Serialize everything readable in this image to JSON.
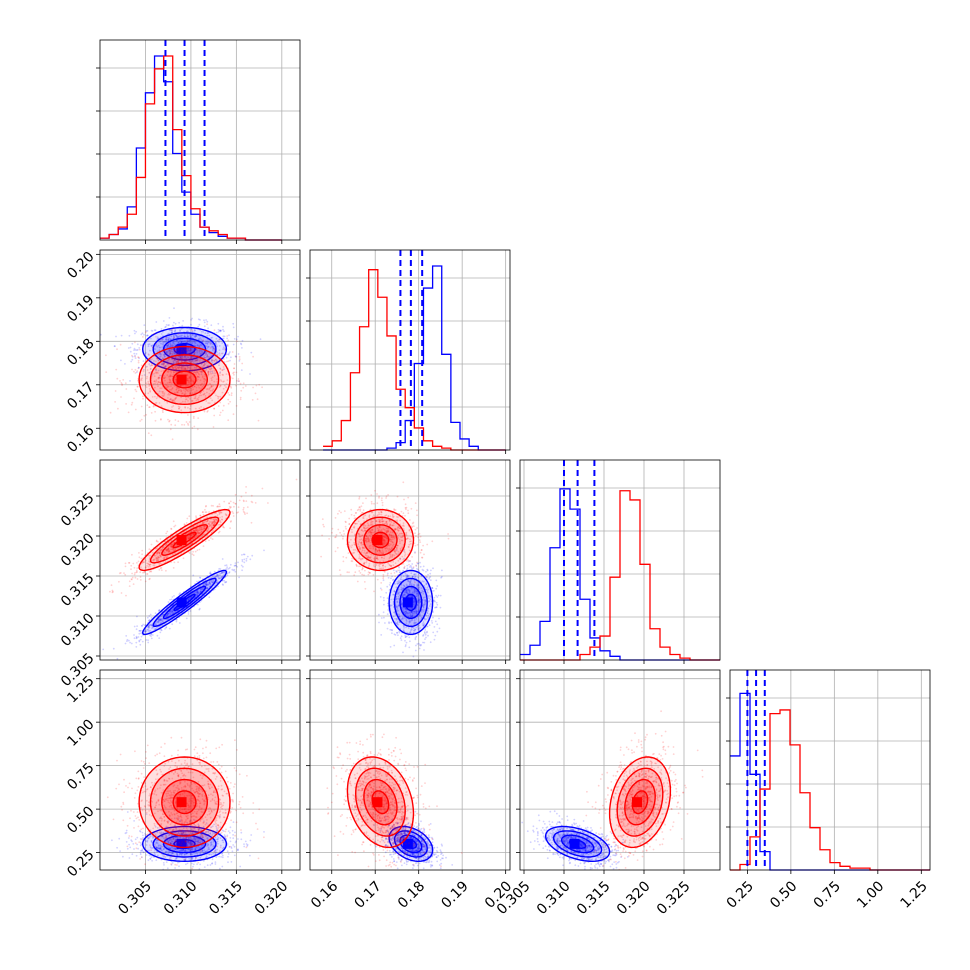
{
  "chart_data": {
    "type": "corner",
    "title": "",
    "grid": true,
    "legend": "none",
    "series": [
      {
        "color": "#0000ff"
      },
      {
        "color": "#ff0000"
      }
    ],
    "parameters": [
      {
        "range": [
          0.3,
          0.322
        ],
        "ticks": [
          0.305,
          0.31,
          0.315,
          0.32
        ],
        "tick_labels": [
          "0.305",
          "0.310",
          "0.315",
          "0.320"
        ],
        "quantiles_blue": [
          0.3072,
          0.3093,
          0.3115
        ]
      },
      {
        "range": [
          0.155,
          0.201
        ],
        "ticks": [
          0.16,
          0.17,
          0.18,
          0.19,
          0.2
        ],
        "tick_labels": [
          "0.16",
          "0.17",
          "0.18",
          "0.19",
          "0.20"
        ],
        "quantiles_blue": [
          0.1758,
          0.1782,
          0.1808
        ]
      },
      {
        "range": [
          0.3045,
          0.3295
        ],
        "ticks": [
          0.305,
          0.31,
          0.315,
          0.32,
          0.325
        ],
        "tick_labels": [
          "0.305",
          "0.310",
          "0.315",
          "0.320",
          "0.325"
        ],
        "quantiles_blue": [
          0.31,
          0.3117,
          0.3138
        ]
      },
      {
        "range": [
          0.15,
          1.3
        ],
        "ticks": [
          0.25,
          0.5,
          0.75,
          1.0,
          1.25
        ],
        "tick_labels": [
          "0.25",
          "0.50",
          "0.75",
          "1.00",
          "1.25"
        ],
        "quantiles_blue": [
          0.25,
          0.3,
          0.35
        ]
      }
    ],
    "histograms": [
      {
        "edges_start": 0.3,
        "bin_width": 0.001,
        "blue": [
          0.01,
          0.03,
          0.06,
          0.18,
          0.5,
          0.8,
          1.0,
          0.86,
          0.47,
          0.26,
          0.14,
          0.07,
          0.04,
          0.02,
          0.01,
          0.01,
          0.0,
          0.0,
          0.0,
          0.0
        ],
        "red": [
          0.01,
          0.03,
          0.07,
          0.14,
          0.34,
          0.74,
          0.93,
          1.0,
          0.6,
          0.35,
          0.17,
          0.07,
          0.05,
          0.03,
          0.01,
          0.01,
          0.0,
          0.0,
          0.0,
          0.0
        ]
      },
      {
        "edges_start": 0.158,
        "bin_width": 0.0021,
        "blue": [
          0.0,
          0.0,
          0.0,
          0.0,
          0.0,
          0.0,
          0.0,
          0.01,
          0.04,
          0.16,
          0.47,
          0.88,
          1.0,
          0.52,
          0.15,
          0.06,
          0.02,
          0.0,
          0.0,
          0.0
        ],
        "red": [
          0.02,
          0.05,
          0.16,
          0.42,
          0.67,
          0.98,
          0.83,
          0.62,
          0.33,
          0.23,
          0.12,
          0.05,
          0.02,
          0.01,
          0.0,
          0.0,
          0.0,
          0.0,
          0.0,
          0.0
        ]
      },
      {
        "edges_start": 0.3045,
        "bin_width": 0.00125,
        "blue": [
          0.03,
          0.08,
          0.21,
          0.61,
          0.93,
          0.82,
          0.33,
          0.12,
          0.05,
          0.02,
          0.0,
          0.0,
          0.0,
          0.0,
          0.0,
          0.0,
          0.0,
          0.0,
          0.0,
          0.0
        ],
        "red": [
          0.0,
          0.0,
          0.0,
          0.0,
          0.0,
          0.0,
          0.03,
          0.07,
          0.13,
          0.45,
          0.92,
          0.87,
          0.52,
          0.17,
          0.07,
          0.03,
          0.01,
          0.0,
          0.0,
          0.0
        ],
        "red_note_suppressed": ""
      },
      {
        "edges_start": 0.15,
        "bin_width": 0.0575,
        "blue": [
          0.62,
          0.96,
          0.52,
          0.1,
          0.0,
          0.0,
          0.0,
          0.0,
          0.0,
          0.0,
          0.0,
          0.0,
          0.0,
          0.0,
          0.0,
          0.0,
          0.0,
          0.0,
          0.0,
          0.0
        ],
        "red": [
          0.0,
          0.03,
          0.18,
          0.44,
          0.85,
          0.87,
          0.68,
          0.42,
          0.23,
          0.11,
          0.04,
          0.02,
          0.01,
          0.01,
          0.0,
          0.0,
          0.0,
          0.0,
          0.0,
          0.0
        ]
      }
    ],
    "posteriors_2d": {
      "blue": {
        "mean": [
          0.3093,
          0.1782,
          0.3117,
          0.3
        ],
        "std": [
          0.0023,
          0.0025,
          0.002,
          0.05
        ],
        "corr": [
          [
            1,
            0,
            0.95,
            0
          ],
          [
            0,
            1,
            0,
            -0.35
          ],
          [
            0.95,
            0,
            1,
            -0.45
          ],
          [
            0,
            -0.35,
            -0.45,
            1
          ]
        ]
      },
      "red": {
        "mean": [
          0.3093,
          0.1712,
          0.3195,
          0.54
        ],
        "std": [
          0.0025,
          0.0038,
          0.0019,
          0.13
        ],
        "corr": [
          [
            1,
            0,
            0.9,
            0
          ],
          [
            0,
            1,
            0,
            -0.25
          ],
          [
            0.9,
            0,
            1,
            0.25
          ],
          [
            0,
            -0.25,
            0.25,
            1
          ]
        ]
      }
    }
  }
}
